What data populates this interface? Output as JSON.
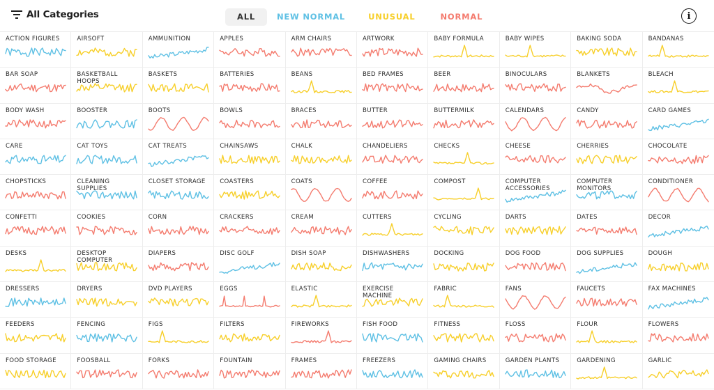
{
  "header": {
    "category_filter_label": "All Categories",
    "tabs": [
      {
        "label": "ALL",
        "active": true,
        "color": "#333333"
      },
      {
        "label": "NEW NORMAL",
        "active": false,
        "color": "#5ec0e4"
      },
      {
        "label": "UNUSUAL",
        "active": false,
        "color": "#f7cf2a"
      },
      {
        "label": "NORMAL",
        "active": false,
        "color": "#f47b6e"
      }
    ],
    "info_icon": "i"
  },
  "colors": {
    "new_normal": "#5ec0e4",
    "unusual": "#f7cf2a",
    "normal": "#f47b6e"
  },
  "categories": [
    {
      "label": "ACTION FIGURES",
      "type": "new_normal",
      "shape": "noisy",
      "seed": 1
    },
    {
      "label": "AIRSOFT",
      "type": "unusual",
      "shape": "noisy",
      "seed": 2
    },
    {
      "label": "AMMUNITION",
      "type": "new_normal",
      "shape": "rise",
      "seed": 3
    },
    {
      "label": "APPLES",
      "type": "normal",
      "shape": "noisy",
      "seed": 4
    },
    {
      "label": "ARM CHAIRS",
      "type": "normal",
      "shape": "noisy",
      "seed": 5
    },
    {
      "label": "ARTWORK",
      "type": "normal",
      "shape": "noisy",
      "seed": 6
    },
    {
      "label": "BABY FORMULA",
      "type": "unusual",
      "shape": "spike",
      "seed": 7
    },
    {
      "label": "BABY WIPES",
      "type": "unusual",
      "shape": "spike",
      "seed": 8
    },
    {
      "label": "BAKING SODA",
      "type": "unusual",
      "shape": "noisy",
      "seed": 9
    },
    {
      "label": "BANDANAS",
      "type": "unusual",
      "shape": "spike",
      "seed": 10
    },
    {
      "label": "BAR SOAP",
      "type": "normal",
      "shape": "noisy",
      "seed": 11
    },
    {
      "label": "BASKETBALL HOOPS",
      "type": "unusual",
      "shape": "noisy",
      "seed": 12
    },
    {
      "label": "BASKETS",
      "type": "unusual",
      "shape": "noisy",
      "seed": 13
    },
    {
      "label": "BATTERIES",
      "type": "normal",
      "shape": "noisy",
      "seed": 14
    },
    {
      "label": "BEANS",
      "type": "unusual",
      "shape": "spike",
      "seed": 15
    },
    {
      "label": "BED FRAMES",
      "type": "normal",
      "shape": "noisy",
      "seed": 16
    },
    {
      "label": "BEER",
      "type": "normal",
      "shape": "noisy",
      "seed": 17
    },
    {
      "label": "BINOCULARS",
      "type": "normal",
      "shape": "noisy",
      "seed": 18
    },
    {
      "label": "BLANKETS",
      "type": "normal",
      "shape": "wave",
      "seed": 19
    },
    {
      "label": "BLEACH",
      "type": "unusual",
      "shape": "spike",
      "seed": 20
    },
    {
      "label": "BODY WASH",
      "type": "normal",
      "shape": "noisy",
      "seed": 21
    },
    {
      "label": "BOOSTER",
      "type": "new_normal",
      "shape": "noisy",
      "seed": 22
    },
    {
      "label": "BOOTS",
      "type": "normal",
      "shape": "season",
      "seed": 23
    },
    {
      "label": "BOWLS",
      "type": "normal",
      "shape": "noisy",
      "seed": 24
    },
    {
      "label": "BRACES",
      "type": "normal",
      "shape": "noisy",
      "seed": 25
    },
    {
      "label": "BUTTER",
      "type": "normal",
      "shape": "noisy",
      "seed": 26
    },
    {
      "label": "BUTTERMILK",
      "type": "normal",
      "shape": "noisy",
      "seed": 27
    },
    {
      "label": "CALENDARS",
      "type": "normal",
      "shape": "season",
      "seed": 28
    },
    {
      "label": "CANDY",
      "type": "normal",
      "shape": "noisy",
      "seed": 29
    },
    {
      "label": "CARD GAMES",
      "type": "new_normal",
      "shape": "rise",
      "seed": 30
    },
    {
      "label": "CARE",
      "type": "new_normal",
      "shape": "noisy",
      "seed": 31
    },
    {
      "label": "CAT TOYS",
      "type": "new_normal",
      "shape": "noisy",
      "seed": 32
    },
    {
      "label": "CAT TREATS",
      "type": "new_normal",
      "shape": "rise",
      "seed": 33
    },
    {
      "label": "CHAINSAWS",
      "type": "unusual",
      "shape": "noisy",
      "seed": 34
    },
    {
      "label": "CHALK",
      "type": "unusual",
      "shape": "noisy",
      "seed": 35
    },
    {
      "label": "CHANDELIERS",
      "type": "normal",
      "shape": "noisy",
      "seed": 36
    },
    {
      "label": "CHECKS",
      "type": "unusual",
      "shape": "spike",
      "seed": 37
    },
    {
      "label": "CHEESE",
      "type": "normal",
      "shape": "noisy",
      "seed": 38
    },
    {
      "label": "CHERRIES",
      "type": "unusual",
      "shape": "noisy",
      "seed": 39
    },
    {
      "label": "CHOCOLATE",
      "type": "normal",
      "shape": "noisy",
      "seed": 40
    },
    {
      "label": "CHOPSTICKS",
      "type": "normal",
      "shape": "noisy",
      "seed": 41
    },
    {
      "label": "CLEANING SUPPLIES",
      "type": "new_normal",
      "shape": "noisy",
      "seed": 42
    },
    {
      "label": "CLOSET STORAGE",
      "type": "new_normal",
      "shape": "noisy",
      "seed": 43
    },
    {
      "label": "COASTERS",
      "type": "unusual",
      "shape": "noisy",
      "seed": 44
    },
    {
      "label": "COATS",
      "type": "normal",
      "shape": "season",
      "seed": 45
    },
    {
      "label": "COFFEE",
      "type": "normal",
      "shape": "noisy",
      "seed": 46
    },
    {
      "label": "COMPOST",
      "type": "unusual",
      "shape": "spike",
      "seed": 47
    },
    {
      "label": "COMPUTER ACCESSORIES",
      "type": "new_normal",
      "shape": "rise",
      "seed": 48
    },
    {
      "label": "COMPUTER MONITORS",
      "type": "new_normal",
      "shape": "noisy",
      "seed": 49
    },
    {
      "label": "CONDITIONER",
      "type": "normal",
      "shape": "season",
      "seed": 50
    },
    {
      "label": "CONFETTI",
      "type": "normal",
      "shape": "noisy",
      "seed": 51
    },
    {
      "label": "COOKIES",
      "type": "normal",
      "shape": "noisy",
      "seed": 52
    },
    {
      "label": "CORN",
      "type": "normal",
      "shape": "noisy",
      "seed": 53
    },
    {
      "label": "CRACKERS",
      "type": "normal",
      "shape": "noisy",
      "seed": 54
    },
    {
      "label": "CREAM",
      "type": "normal",
      "shape": "noisy",
      "seed": 55
    },
    {
      "label": "CUTTERS",
      "type": "unusual",
      "shape": "spike",
      "seed": 56
    },
    {
      "label": "CYCLING",
      "type": "unusual",
      "shape": "noisy",
      "seed": 57
    },
    {
      "label": "DARTS",
      "type": "unusual",
      "shape": "noisy",
      "seed": 58
    },
    {
      "label": "DATES",
      "type": "normal",
      "shape": "noisy",
      "seed": 59
    },
    {
      "label": "DECOR",
      "type": "new_normal",
      "shape": "rise",
      "seed": 60
    },
    {
      "label": "DESKS",
      "type": "unusual",
      "shape": "spike",
      "seed": 61
    },
    {
      "label": "DESKTOP COMPUTER",
      "type": "unusual",
      "shape": "noisy",
      "seed": 62
    },
    {
      "label": "DIAPERS",
      "type": "normal",
      "shape": "noisy",
      "seed": 63
    },
    {
      "label": "DISC GOLF",
      "type": "new_normal",
      "shape": "rise",
      "seed": 64
    },
    {
      "label": "DISH SOAP",
      "type": "unusual",
      "shape": "noisy",
      "seed": 65
    },
    {
      "label": "DISHWASHERS",
      "type": "new_normal",
      "shape": "noisy",
      "seed": 66
    },
    {
      "label": "DOCKING",
      "type": "unusual",
      "shape": "noisy",
      "seed": 67
    },
    {
      "label": "DOG FOOD",
      "type": "normal",
      "shape": "noisy",
      "seed": 68
    },
    {
      "label": "DOG SUPPLIES",
      "type": "new_normal",
      "shape": "rise",
      "seed": 69
    },
    {
      "label": "DOUGH",
      "type": "unusual",
      "shape": "noisy",
      "seed": 70
    },
    {
      "label": "DRESSERS",
      "type": "new_normal",
      "shape": "noisy",
      "seed": 71
    },
    {
      "label": "DRYERS",
      "type": "unusual",
      "shape": "noisy",
      "seed": 72
    },
    {
      "label": "DVD PLAYERS",
      "type": "unusual",
      "shape": "noisy",
      "seed": 73
    },
    {
      "label": "EGGS",
      "type": "normal",
      "shape": "spikes3",
      "seed": 74
    },
    {
      "label": "ELASTIC",
      "type": "unusual",
      "shape": "spike",
      "seed": 75
    },
    {
      "label": "EXERCISE MACHINE",
      "type": "unusual",
      "shape": "noisy",
      "seed": 76
    },
    {
      "label": "FABRIC",
      "type": "unusual",
      "shape": "spike",
      "seed": 77
    },
    {
      "label": "FANS",
      "type": "normal",
      "shape": "season",
      "seed": 78
    },
    {
      "label": "FAUCETS",
      "type": "normal",
      "shape": "noisy",
      "seed": 79
    },
    {
      "label": "FAX MACHINES",
      "type": "new_normal",
      "shape": "rise",
      "seed": 80
    },
    {
      "label": "FEEDERS",
      "type": "unusual",
      "shape": "noisy",
      "seed": 81
    },
    {
      "label": "FENCING",
      "type": "new_normal",
      "shape": "noisy",
      "seed": 82
    },
    {
      "label": "FIGS",
      "type": "unusual",
      "shape": "spike",
      "seed": 83
    },
    {
      "label": "FILTERS",
      "type": "unusual",
      "shape": "noisy",
      "seed": 84
    },
    {
      "label": "FIREWORKS",
      "type": "normal",
      "shape": "spike",
      "seed": 85
    },
    {
      "label": "FISH FOOD",
      "type": "new_normal",
      "shape": "noisy",
      "seed": 86
    },
    {
      "label": "FITNESS",
      "type": "unusual",
      "shape": "noisy",
      "seed": 87
    },
    {
      "label": "FLOSS",
      "type": "normal",
      "shape": "noisy",
      "seed": 88
    },
    {
      "label": "FLOUR",
      "type": "unusual",
      "shape": "spike",
      "seed": 89
    },
    {
      "label": "FLOWERS",
      "type": "normal",
      "shape": "noisy",
      "seed": 90
    },
    {
      "label": "FOOD STORAGE",
      "type": "unusual",
      "shape": "noisy",
      "seed": 91
    },
    {
      "label": "FOOSBALL",
      "type": "normal",
      "shape": "noisy",
      "seed": 92
    },
    {
      "label": "FORKS",
      "type": "normal",
      "shape": "noisy",
      "seed": 93
    },
    {
      "label": "FOUNTAIN",
      "type": "normal",
      "shape": "noisy",
      "seed": 94
    },
    {
      "label": "FRAMES",
      "type": "normal",
      "shape": "noisy",
      "seed": 95
    },
    {
      "label": "FREEZERS",
      "type": "new_normal",
      "shape": "noisy",
      "seed": 96
    },
    {
      "label": "GAMING CHAIRS",
      "type": "unusual",
      "shape": "noisy",
      "seed": 97
    },
    {
      "label": "GARDEN PLANTS",
      "type": "new_normal",
      "shape": "noisy",
      "seed": 98
    },
    {
      "label": "GARDENING",
      "type": "unusual",
      "shape": "spike",
      "seed": 99
    },
    {
      "label": "GARLIC",
      "type": "unusual",
      "shape": "noisy",
      "seed": 100
    }
  ]
}
